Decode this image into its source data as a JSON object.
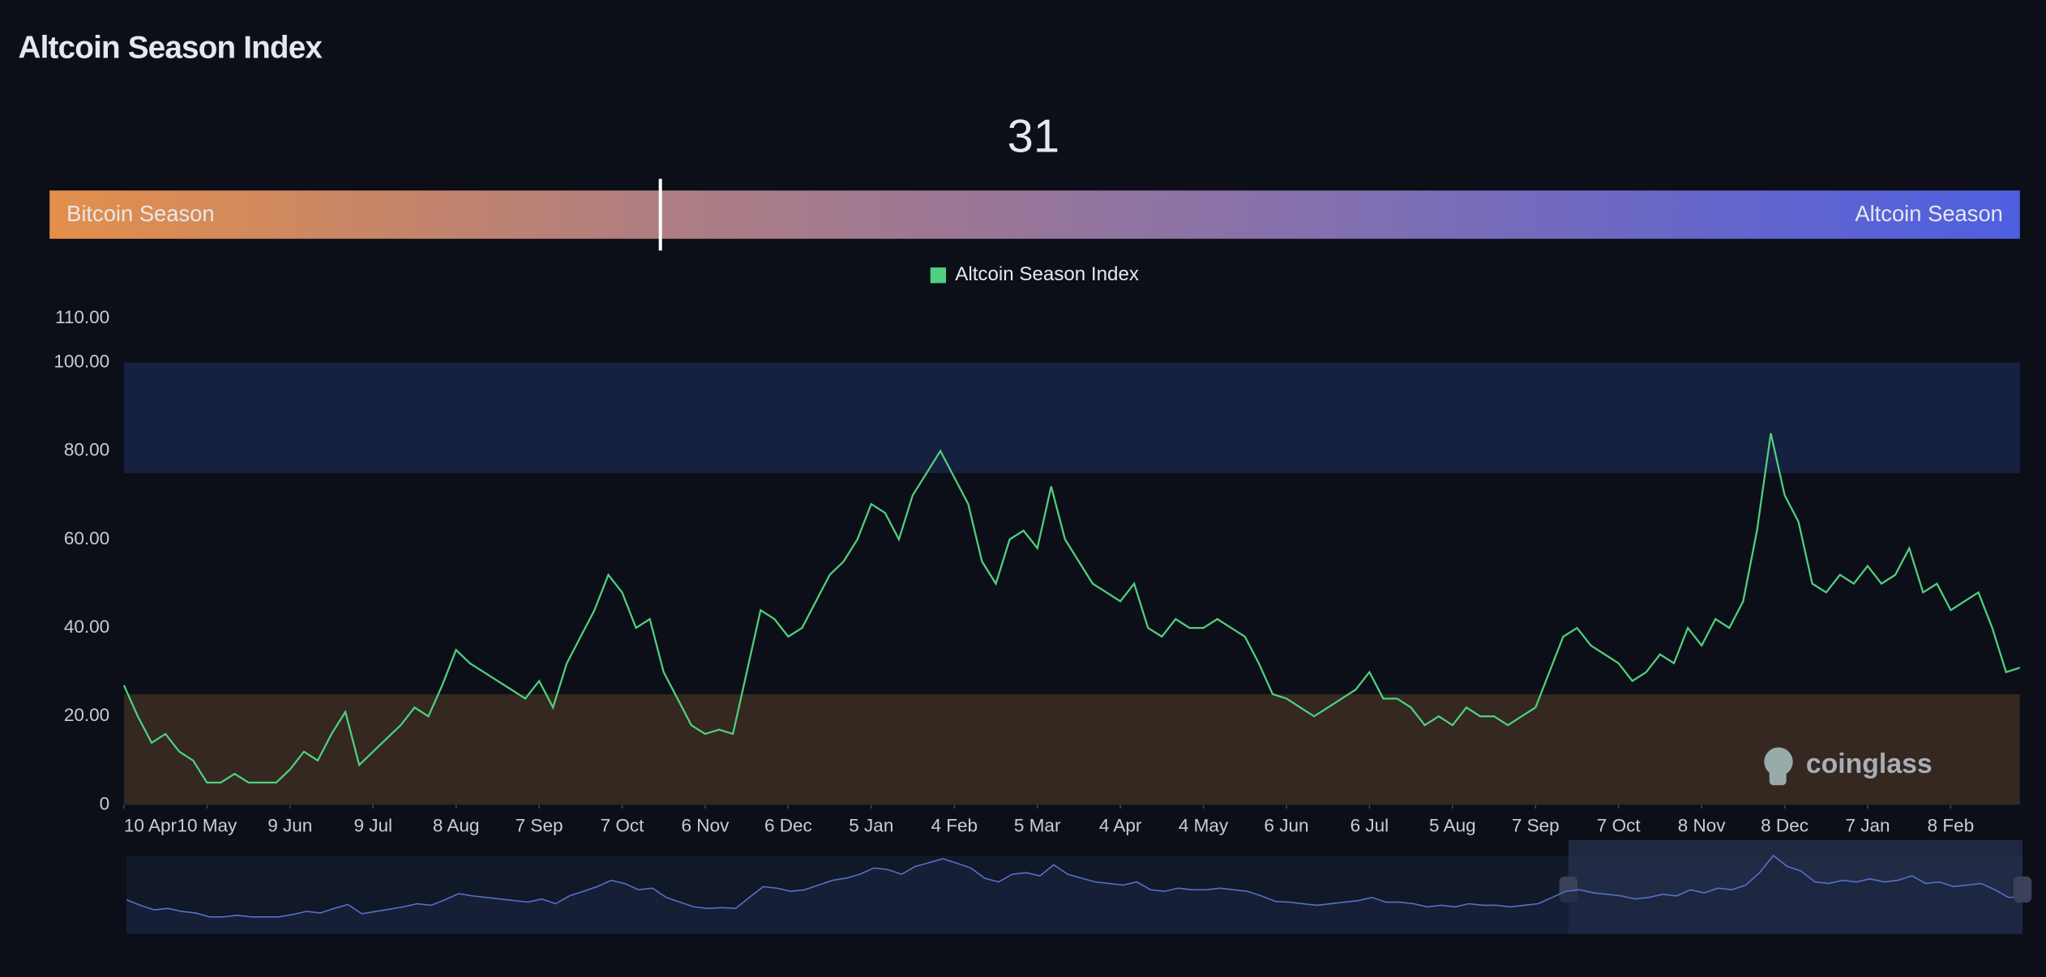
{
  "chart_data": {
    "type": "line",
    "title": "Altcoin Season Index",
    "current_value": 31,
    "gauge_left_label": "Bitcoin Season",
    "gauge_right_label": "Altcoin Season",
    "watermark": "coinglass",
    "categories": [
      "10 Apr",
      null,
      null,
      null,
      null,
      null,
      "10 May",
      null,
      null,
      null,
      null,
      null,
      "9 Jun",
      null,
      null,
      null,
      null,
      null,
      "9 Jul",
      null,
      null,
      null,
      null,
      null,
      "8 Aug",
      null,
      null,
      null,
      null,
      null,
      "7 Sep",
      null,
      null,
      null,
      null,
      null,
      "7 Oct",
      null,
      null,
      null,
      null,
      null,
      "6 Nov",
      null,
      null,
      null,
      null,
      null,
      "6 Dec",
      null,
      null,
      null,
      null,
      null,
      "5 Jan",
      null,
      null,
      null,
      null,
      null,
      "4 Feb",
      null,
      null,
      null,
      null,
      null,
      "5 Mar",
      null,
      null,
      null,
      null,
      null,
      "4 Apr",
      null,
      null,
      null,
      null,
      null,
      "4 May",
      null,
      null,
      null,
      null,
      null,
      "6 Jun",
      null,
      null,
      null,
      null,
      null,
      "6 Jul",
      null,
      null,
      null,
      null,
      null,
      "5 Aug",
      null,
      null,
      null,
      null,
      null,
      "7 Sep",
      null,
      null,
      null,
      null,
      null,
      "7 Oct",
      null,
      null,
      null,
      null,
      null,
      "8 Nov",
      null,
      null,
      null,
      null,
      null,
      "8 Dec",
      null,
      null,
      null,
      null,
      null,
      "7 Jan",
      null,
      null,
      null,
      null,
      null,
      "8 Feb",
      null,
      null,
      null,
      null,
      null
    ],
    "series": [
      {
        "name": "Altcoin Season Index",
        "color": "#4fd07f",
        "values": [
          27,
          20,
          14,
          16,
          12,
          10,
          5,
          5,
          7,
          5,
          5,
          5,
          8,
          12,
          10,
          16,
          21,
          9,
          12,
          15,
          18,
          22,
          20,
          27,
          35,
          32,
          30,
          28,
          26,
          24,
          28,
          22,
          32,
          38,
          44,
          52,
          48,
          40,
          42,
          30,
          24,
          18,
          16,
          17,
          16,
          30,
          44,
          42,
          38,
          40,
          46,
          52,
          55,
          60,
          68,
          66,
          60,
          70,
          75,
          80,
          74,
          68,
          55,
          50,
          60,
          62,
          58,
          72,
          60,
          55,
          50,
          48,
          46,
          50,
          40,
          38,
          42,
          40,
          40,
          42,
          40,
          38,
          32,
          25,
          24,
          22,
          20,
          22,
          24,
          26,
          30,
          24,
          24,
          22,
          18,
          20,
          18,
          22,
          20,
          20,
          18,
          20,
          22,
          30,
          38,
          40,
          36,
          34,
          32,
          28,
          30,
          34,
          32,
          40,
          36,
          42,
          40,
          46,
          62,
          84,
          70,
          64,
          50,
          48,
          52,
          50,
          54,
          50,
          52,
          58,
          48,
          50,
          44,
          46,
          48,
          40,
          30,
          31
        ]
      }
    ],
    "bands": [
      {
        "range": [
          75,
          100
        ],
        "color": "#16203f"
      },
      {
        "range": [
          0,
          25
        ],
        "color": "#342820"
      }
    ],
    "ylim": [
      0,
      110
    ],
    "yticks": [
      0,
      {
        "value": 20,
        "label": "20.00"
      },
      {
        "value": 40,
        "label": "40.00"
      },
      {
        "value": 60,
        "label": "60.00"
      },
      {
        "value": 80,
        "label": "80.00"
      },
      {
        "value": 100,
        "label": "100.00"
      },
      {
        "value": 110,
        "label": "110.00"
      }
    ],
    "gauge_range": [
      0,
      100
    ]
  }
}
